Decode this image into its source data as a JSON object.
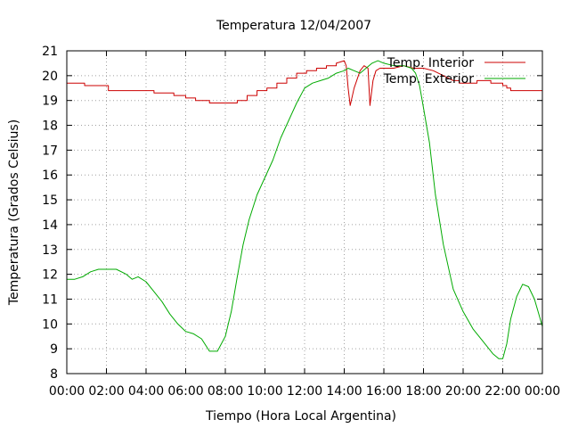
{
  "chart_data": {
    "type": "line",
    "title": "Temperatura 12/04/2007",
    "xlabel": "Tiempo (Hora Local Argentina)",
    "ylabel": "Temperatura (Grados Celsius)",
    "xlim": [
      0,
      24
    ],
    "ylim": [
      8,
      21
    ],
    "x_ticks": [
      0,
      2,
      4,
      6,
      8,
      10,
      12,
      14,
      16,
      18,
      20,
      22,
      24
    ],
    "x_tick_labels": [
      "00:00",
      "02:00",
      "04:00",
      "06:00",
      "08:00",
      "10:00",
      "12:00",
      "14:00",
      "16:00",
      "18:00",
      "20:00",
      "22:00",
      "00:00"
    ],
    "y_ticks": [
      8,
      9,
      10,
      11,
      12,
      13,
      14,
      15,
      16,
      17,
      18,
      19,
      20,
      21
    ],
    "y_tick_labels": [
      "8",
      "9",
      "10",
      "11",
      "12",
      "13",
      "14",
      "15",
      "16",
      "17",
      "18",
      "19",
      "20",
      "21"
    ],
    "grid": true,
    "legend_position": "top-right",
    "series": [
      {
        "name": "Temp. Interior",
        "color": "#cc0000",
        "x": [
          0,
          0.9,
          0.9,
          2.1,
          2.1,
          4.4,
          4.4,
          5.4,
          5.4,
          6,
          6,
          6.5,
          6.5,
          7.2,
          7.2,
          8.6,
          8.6,
          9.1,
          9.1,
          9.6,
          9.6,
          10.1,
          10.1,
          10.6,
          10.6,
          11.1,
          11.1,
          11.6,
          11.6,
          12.1,
          12.1,
          12.6,
          12.6,
          13.1,
          13.1,
          13.6,
          13.6,
          14.0,
          14.1,
          14.2,
          14.3,
          14.5,
          14.8,
          15.0,
          15.2,
          15.3,
          15.45,
          15.6,
          15.8,
          16.0,
          16.5,
          17.0,
          17.5,
          18.0,
          18.5,
          19.0,
          19.5,
          19.8,
          19.8,
          20.7,
          20.7,
          21.4,
          21.4,
          22.0,
          22.0,
          22.2,
          22.2,
          22.4,
          22.4,
          23.1,
          23.1,
          24
        ],
        "y": [
          19.7,
          19.7,
          19.6,
          19.6,
          19.4,
          19.4,
          19.3,
          19.3,
          19.2,
          19.2,
          19.1,
          19.1,
          19.0,
          19.0,
          18.9,
          18.9,
          19.0,
          19.0,
          19.2,
          19.2,
          19.4,
          19.4,
          19.5,
          19.5,
          19.7,
          19.7,
          19.9,
          19.9,
          20.1,
          20.1,
          20.2,
          20.2,
          20.3,
          20.3,
          20.4,
          20.4,
          20.5,
          20.6,
          20.4,
          19.5,
          18.8,
          19.5,
          20.2,
          20.4,
          20.3,
          18.8,
          19.8,
          20.2,
          20.3,
          20.3,
          20.3,
          20.4,
          20.3,
          20.3,
          20.2,
          20.0,
          19.8,
          19.8,
          19.7,
          19.7,
          19.8,
          19.8,
          19.7,
          19.7,
          19.6,
          19.6,
          19.5,
          19.5,
          19.4,
          19.4,
          19.4,
          19.4
        ]
      },
      {
        "name": "Temp. Exterior",
        "color": "#00aa00",
        "x": [
          0,
          0.4,
          0.8,
          1.2,
          1.6,
          2.0,
          2.5,
          3.0,
          3.3,
          3.6,
          4.0,
          4.4,
          4.8,
          5.2,
          5.6,
          6.0,
          6.4,
          6.8,
          7.2,
          7.6,
          8.0,
          8.3,
          8.6,
          8.9,
          9.2,
          9.6,
          10.0,
          10.4,
          10.8,
          11.2,
          11.6,
          12.0,
          12.4,
          12.8,
          13.2,
          13.6,
          14.0,
          14.2,
          14.5,
          14.8,
          15.1,
          15.4,
          15.7,
          16.0,
          16.5,
          17.0,
          17.4,
          17.6,
          17.8,
          18.0,
          18.3,
          18.6,
          19.0,
          19.5,
          20.0,
          20.5,
          21.0,
          21.5,
          21.8,
          22.0,
          22.2,
          22.4,
          22.7,
          23.0,
          23.3,
          23.6,
          24.0
        ],
        "y": [
          11.8,
          11.8,
          11.9,
          12.1,
          12.2,
          12.2,
          12.2,
          12.0,
          11.8,
          11.9,
          11.7,
          11.3,
          10.9,
          10.4,
          10.0,
          9.7,
          9.6,
          9.4,
          8.9,
          8.9,
          9.5,
          10.5,
          11.9,
          13.2,
          14.2,
          15.2,
          15.9,
          16.6,
          17.5,
          18.2,
          18.9,
          19.5,
          19.7,
          19.8,
          19.9,
          20.1,
          20.2,
          20.3,
          20.2,
          20.1,
          20.3,
          20.5,
          20.6,
          20.5,
          20.4,
          20.4,
          20.3,
          20.1,
          19.6,
          18.7,
          17.3,
          15.2,
          13.2,
          11.4,
          10.5,
          9.8,
          9.3,
          8.8,
          8.6,
          8.6,
          9.2,
          10.2,
          11.1,
          11.6,
          11.5,
          11.0,
          9.9
        ]
      }
    ]
  }
}
